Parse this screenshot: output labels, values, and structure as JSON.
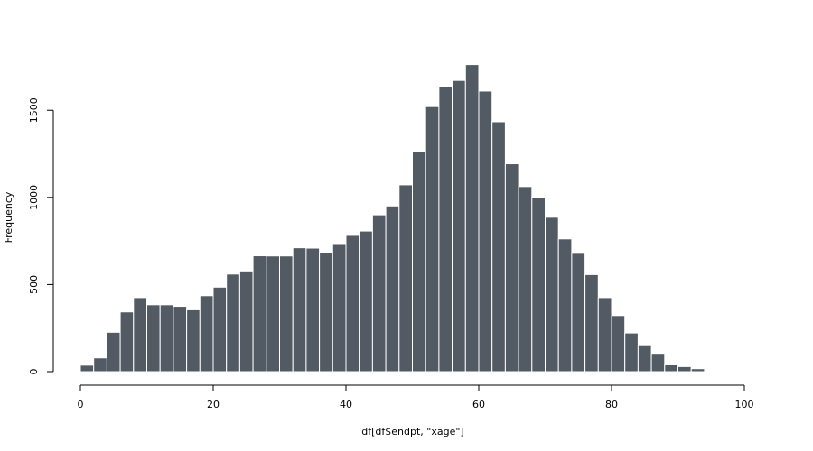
{
  "chart_data": {
    "type": "bar",
    "xlabel": "df[df$endpt, \"xage\"]",
    "ylabel": "Frequency",
    "xlim": [
      0,
      100
    ],
    "ylim": [
      0,
      1760
    ],
    "x_ticks": [
      0,
      20,
      40,
      60,
      80,
      100
    ],
    "y_ticks": [
      0,
      500,
      1000,
      1500
    ],
    "bin_width": 2,
    "bin_starts": [
      0,
      2,
      4,
      6,
      8,
      10,
      12,
      14,
      16,
      18,
      20,
      22,
      24,
      26,
      28,
      30,
      32,
      34,
      36,
      38,
      40,
      42,
      44,
      46,
      48,
      50,
      52,
      54,
      56,
      58,
      60,
      62,
      64,
      66,
      68,
      70,
      72,
      74,
      76,
      78,
      80,
      82,
      84,
      86,
      88,
      90,
      92
    ],
    "values": [
      37,
      79,
      226,
      343,
      425,
      384,
      384,
      375,
      355,
      436,
      485,
      560,
      578,
      665,
      664,
      664,
      711,
      709,
      681,
      730,
      782,
      807,
      900,
      951,
      1072,
      1265,
      1521,
      1634,
      1671,
      1762,
      1610,
      1434,
      1193,
      1062,
      1001,
      886,
      762,
      679,
      557,
      425,
      322,
      222,
      149,
      100,
      39,
      29,
      17
    ],
    "bar_color": "#525a63",
    "grid": false
  }
}
